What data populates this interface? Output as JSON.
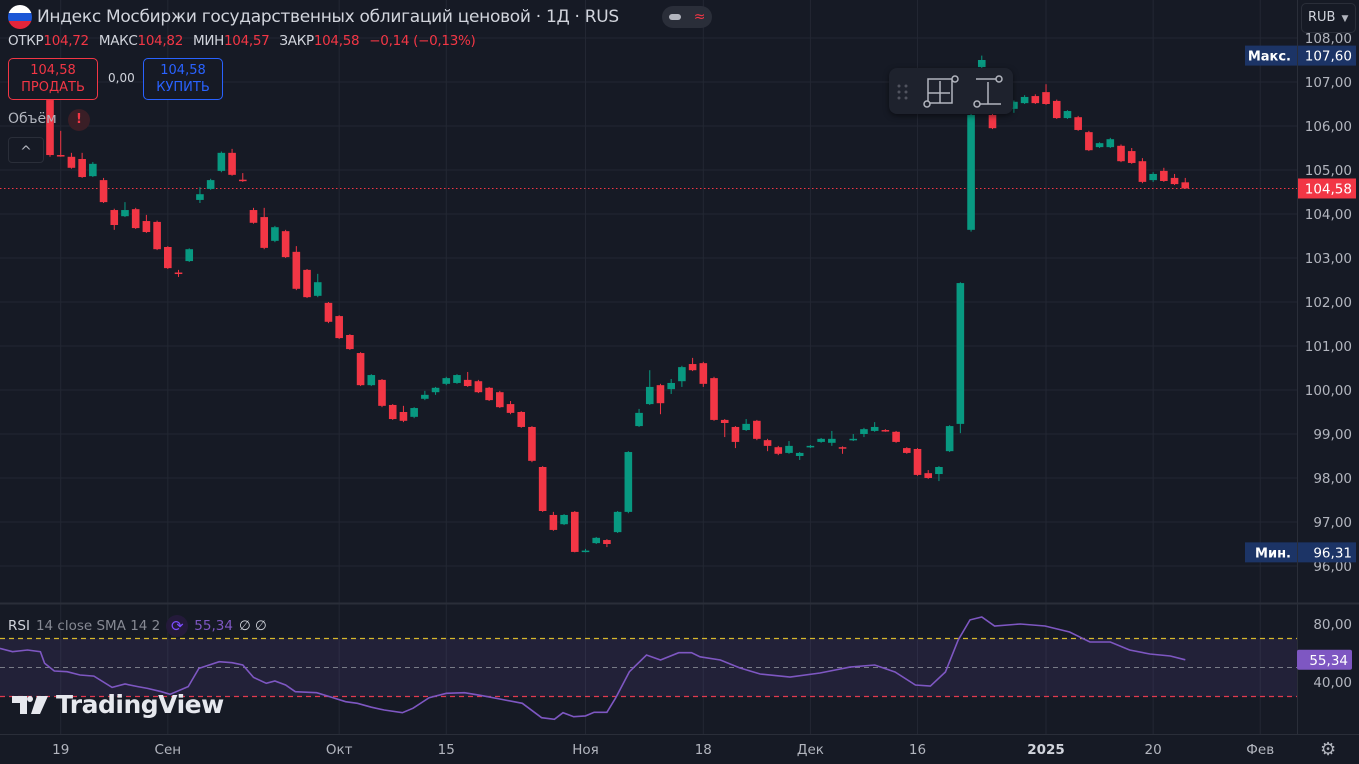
{
  "header": {
    "title": "Индекс Мосбиржи государственных облигаций ценовой · 1Д · RUS",
    "flag_icon": "russia-flag-icon",
    "ohlc": {
      "open_label": "ОТКР",
      "open": "104,72",
      "high_label": "МАКС",
      "high": "104,82",
      "low_label": "МИН",
      "low": "104,57",
      "close_label": "ЗАКР",
      "close": "104,58",
      "change": "−0,14 (−0,13%)"
    }
  },
  "trade": {
    "sell_price": "104,58",
    "sell_label": "ПРОДАТЬ",
    "spread": "0,00",
    "buy_price": "104,58",
    "buy_label": "КУПИТЬ"
  },
  "volume": {
    "label": "Объём",
    "warning": "!",
    "collapse": "^"
  },
  "currency": "RUB",
  "rsi_legend": {
    "name": "RSI",
    "params": "14 close SMA 14 2",
    "value": "55,34",
    "extra": "∅ ∅"
  },
  "watermark": "TradingView",
  "colors": {
    "up": "#089981",
    "down": "#f23645",
    "rsi": "#7e57c2",
    "bg": "#161a25",
    "grid": "#232733",
    "max_label_bg": "#1c3466"
  },
  "chart_data": {
    "type": "candlestick",
    "title": "Индекс Мосбиржи государственных облигаций ценовой · 1Д · RUS",
    "ylim": [
      95.75,
      108.3
    ],
    "price_ticks": [
      "108,00",
      "107,00",
      "106,00",
      "105,00",
      "104,00",
      "103,00",
      "102,00",
      "101,00",
      "100,00",
      "99,00",
      "98,00",
      "97,00",
      "96,00"
    ],
    "price_tick_values": [
      108,
      107,
      106,
      105,
      104,
      103,
      102,
      101,
      100,
      99,
      98,
      97,
      96
    ],
    "last_price": 104.58,
    "last_price_label": "104,58",
    "max_label": "Макс.",
    "max_value": "107,60",
    "max": 107.6,
    "min_label": "Мин.",
    "min_value": "96,31",
    "min": 96.31,
    "x_labels": [
      {
        "label": "19",
        "bar": 1
      },
      {
        "label": "Сен",
        "bar": 11
      },
      {
        "label": "Окт",
        "bar": 27
      },
      {
        "label": "15",
        "bar": 37
      },
      {
        "label": "Ноя",
        "bar": 50
      },
      {
        "label": "18",
        "bar": 61
      },
      {
        "label": "Дек",
        "bar": 71
      },
      {
        "label": "16",
        "bar": 81
      },
      {
        "label": "2025",
        "bar": 93
      },
      {
        "label": "20",
        "bar": 103
      },
      {
        "label": "Фев",
        "bar": 113
      }
    ],
    "candles_ohlc": [
      [
        106.59,
        106.7,
        105.3,
        105.34
      ],
      [
        105.34,
        105.89,
        105.3,
        105.32
      ],
      [
        105.3,
        105.39,
        105.03,
        105.05
      ],
      [
        105.25,
        105.39,
        104.82,
        104.84
      ],
      [
        104.86,
        105.18,
        104.84,
        105.14
      ],
      [
        104.77,
        104.82,
        104.25,
        104.27
      ],
      [
        104.09,
        104.12,
        103.64,
        103.75
      ],
      [
        103.95,
        104.27,
        103.93,
        104.09
      ],
      [
        104.11,
        104.14,
        103.66,
        103.68
      ],
      [
        103.84,
        103.98,
        103.57,
        103.59
      ],
      [
        103.82,
        103.85,
        103.18,
        103.2
      ],
      [
        103.25,
        103.27,
        102.75,
        102.77
      ],
      [
        102.67,
        102.73,
        102.57,
        102.66
      ],
      [
        102.93,
        103.22,
        102.91,
        103.2
      ],
      [
        104.32,
        104.61,
        104.25,
        104.45
      ],
      [
        104.57,
        104.8,
        104.55,
        104.77
      ],
      [
        104.98,
        105.42,
        104.95,
        105.39
      ],
      [
        105.39,
        105.48,
        104.87,
        104.89
      ],
      [
        104.78,
        104.93,
        104.73,
        104.77
      ],
      [
        104.09,
        104.14,
        103.78,
        103.8
      ],
      [
        103.93,
        104.14,
        103.2,
        103.23
      ],
      [
        103.39,
        103.73,
        103.36,
        103.7
      ],
      [
        103.61,
        103.64,
        103.0,
        103.02
      ],
      [
        103.14,
        103.27,
        102.27,
        102.3
      ],
      [
        102.73,
        102.75,
        102.09,
        102.11
      ],
      [
        102.14,
        102.64,
        102.11,
        102.45
      ],
      [
        101.98,
        102.0,
        101.52,
        101.55
      ],
      [
        101.68,
        101.7,
        101.16,
        101.18
      ],
      [
        101.25,
        101.27,
        100.91,
        100.93
      ],
      [
        100.84,
        100.86,
        100.09,
        100.11
      ],
      [
        100.11,
        100.36,
        100.09,
        100.34
      ],
      [
        100.23,
        100.25,
        99.61,
        99.64
      ],
      [
        99.66,
        99.68,
        99.32,
        99.34
      ],
      [
        99.5,
        99.64,
        99.27,
        99.3
      ],
      [
        99.39,
        99.61,
        99.36,
        99.59
      ],
      [
        99.8,
        99.98,
        99.77,
        99.89
      ],
      [
        99.95,
        100.07,
        99.89,
        100.05
      ],
      [
        100.14,
        100.3,
        100.11,
        100.27
      ],
      [
        100.16,
        100.36,
        100.14,
        100.34
      ],
      [
        100.23,
        100.41,
        100.07,
        100.09
      ],
      [
        100.2,
        100.23,
        99.93,
        99.95
      ],
      [
        100.05,
        100.07,
        99.75,
        99.77
      ],
      [
        99.95,
        99.98,
        99.59,
        99.61
      ],
      [
        99.68,
        99.75,
        99.45,
        99.48
      ],
      [
        99.5,
        99.52,
        99.14,
        99.16
      ],
      [
        99.16,
        99.18,
        98.36,
        98.39
      ],
      [
        98.25,
        98.27,
        97.23,
        97.25
      ],
      [
        97.16,
        97.23,
        96.8,
        96.82
      ],
      [
        96.95,
        97.18,
        96.93,
        97.16
      ],
      [
        97.23,
        97.25,
        96.31,
        96.32
      ],
      [
        96.34,
        96.39,
        96.31,
        96.35
      ],
      [
        96.52,
        96.66,
        96.5,
        96.64
      ],
      [
        96.59,
        96.61,
        96.43,
        96.5
      ],
      [
        96.77,
        97.25,
        96.75,
        97.23
      ],
      [
        97.23,
        98.61,
        97.2,
        98.59
      ],
      [
        99.18,
        99.57,
        99.16,
        99.48
      ],
      [
        99.68,
        100.45,
        99.66,
        100.07
      ],
      [
        100.11,
        100.14,
        99.45,
        99.7
      ],
      [
        100.02,
        100.25,
        99.91,
        100.16
      ],
      [
        100.2,
        100.55,
        100.07,
        100.52
      ],
      [
        100.59,
        100.73,
        100.43,
        100.45
      ],
      [
        100.61,
        100.64,
        100.07,
        100.14
      ],
      [
        100.27,
        100.3,
        99.3,
        99.32
      ],
      [
        99.32,
        99.34,
        98.93,
        99.25
      ],
      [
        99.16,
        99.18,
        98.68,
        98.82
      ],
      [
        99.09,
        99.34,
        99.07,
        99.23
      ],
      [
        99.3,
        99.32,
        98.86,
        98.89
      ],
      [
        98.86,
        98.89,
        98.61,
        98.73
      ],
      [
        98.7,
        98.73,
        98.52,
        98.55
      ],
      [
        98.57,
        98.84,
        98.55,
        98.73
      ],
      [
        98.5,
        98.59,
        98.41,
        98.57
      ],
      [
        98.7,
        98.75,
        98.68,
        98.73
      ],
      [
        98.82,
        98.91,
        98.8,
        98.89
      ],
      [
        98.8,
        99.07,
        98.73,
        98.89
      ],
      [
        98.7,
        98.72,
        98.55,
        98.68
      ],
      [
        98.86,
        99.0,
        98.84,
        98.89
      ],
      [
        99.0,
        99.14,
        98.93,
        99.11
      ],
      [
        99.07,
        99.27,
        99.05,
        99.16
      ],
      [
        99.09,
        99.11,
        99.05,
        99.08
      ],
      [
        99.05,
        99.07,
        98.8,
        98.82
      ],
      [
        98.68,
        98.7,
        98.55,
        98.57
      ],
      [
        98.66,
        98.68,
        98.05,
        98.07
      ],
      [
        98.11,
        98.18,
        97.98,
        98.0
      ],
      [
        98.09,
        98.27,
        97.93,
        98.25
      ],
      [
        98.61,
        99.2,
        98.59,
        99.18
      ],
      [
        99.23,
        102.45,
        99.02,
        102.43
      ],
      [
        103.64,
        106.3,
        103.6,
        106.25
      ],
      [
        107.34,
        107.6,
        107.3,
        107.5
      ],
      [
        106.25,
        106.3,
        105.93,
        105.95
      ],
      [
        106.41,
        106.62,
        106.38,
        106.59
      ],
      [
        106.39,
        106.58,
        106.3,
        106.55
      ],
      [
        106.52,
        106.7,
        106.5,
        106.66
      ],
      [
        106.68,
        106.72,
        106.5,
        106.52
      ],
      [
        106.77,
        106.95,
        106.48,
        106.5
      ],
      [
        106.57,
        106.6,
        106.16,
        106.18
      ],
      [
        106.18,
        106.36,
        106.16,
        106.34
      ],
      [
        106.2,
        106.23,
        105.89,
        105.91
      ],
      [
        105.86,
        105.89,
        105.43,
        105.45
      ],
      [
        105.52,
        105.63,
        105.5,
        105.61
      ],
      [
        105.52,
        105.73,
        105.5,
        105.7
      ],
      [
        105.55,
        105.58,
        105.18,
        105.2
      ],
      [
        105.43,
        105.5,
        105.14,
        105.16
      ],
      [
        105.2,
        105.27,
        104.7,
        104.73
      ],
      [
        104.77,
        104.95,
        104.73,
        104.91
      ],
      [
        104.98,
        105.05,
        104.73,
        104.75
      ],
      [
        104.82,
        104.91,
        104.66,
        104.68
      ],
      [
        104.72,
        104.82,
        104.57,
        104.58
      ]
    ],
    "rsi": {
      "period": 14,
      "ylim": [
        10,
        90
      ],
      "levels": [
        70,
        50,
        30
      ],
      "tick_labels": [
        "80,00",
        "40,00"
      ],
      "tick_values": [
        80,
        40
      ],
      "current_label": "55,34",
      "current": 55.34,
      "bars": [
        -4.7,
        -3.5,
        -2.1,
        -0.9,
        -0.5,
        0.4,
        1.6,
        2.8,
        4.1,
        5.8,
        7.0,
        8.2,
        9.1,
        10.4,
        11.2,
        12.9,
        13.9,
        15.8,
        17.0,
        18.0,
        19.0,
        20.2,
        21.0,
        22.0,
        22.9,
        24.9,
        26.1,
        27.6,
        28.7,
        30.0,
        31.2,
        32.9,
        33.9,
        35.4,
        37.0,
        38.7,
        40.3,
        42.0,
        44.1,
        45.9,
        47.1,
        47.9,
        48.9,
        50.0,
        50.8,
        52.0,
        52.8,
        54.1,
        55.7,
        57.0,
        58.7,
        59.9,
        60.7,
        62.6,
        64.4,
        66.3,
        69.1,
        71.9,
        74.7,
        77.0,
        78.9,
        80.8,
        82.2,
        83.6,
        84.8,
        85.9,
        87.0,
        88.2,
        90.6,
        92.9,
        95.2,
        97.1,
        99.0,
        100.8,
        102.7,
        104.6,
        106.0
      ],
      "values": [
        63.2,
        60.9,
        62.1,
        60.9,
        52.9,
        47.6,
        47.1,
        44.8,
        44.1,
        36.3,
        38.6,
        36.8,
        35.6,
        33.3,
        31.5,
        36.8,
        49.4,
        54.0,
        53.3,
        51.7,
        43.2,
        39.1,
        40.7,
        37.9,
        33.3,
        32.6,
        29.9,
        26.4,
        25.3,
        22.6,
        20.7,
        18.8,
        21.9,
        29.2,
        32.2,
        32.6,
        30.6,
        28.3,
        25.3,
        15.4,
        14.3,
        18.8,
        16.1,
        16.6,
        19.1,
        19.1,
        28.8,
        47.1,
        58.6,
        55.2,
        60.2,
        60.2,
        57.4,
        55.2,
        49.7,
        45.5,
        43.4,
        46.2,
        50.3,
        51.7,
        46.9,
        37.9,
        37.2,
        46.9,
        69.0,
        82.8,
        84.8,
        78.6,
        80.0,
        78.6,
        74.5,
        67.6,
        67.6,
        62.1,
        59.3,
        57.9,
        55.34
      ]
    }
  }
}
